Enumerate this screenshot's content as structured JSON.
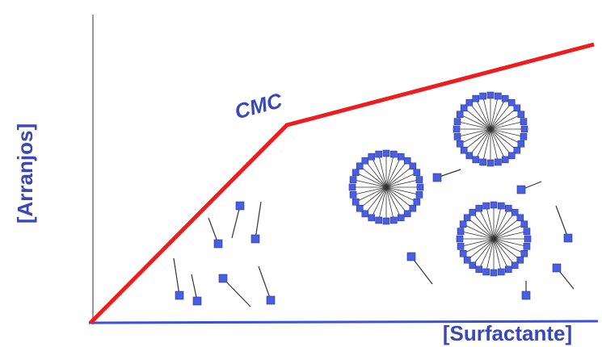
{
  "diagram": {
    "y_label": "[Arranjos]",
    "x_label": "[Surfactante]",
    "annotation": "CMC"
  }
}
